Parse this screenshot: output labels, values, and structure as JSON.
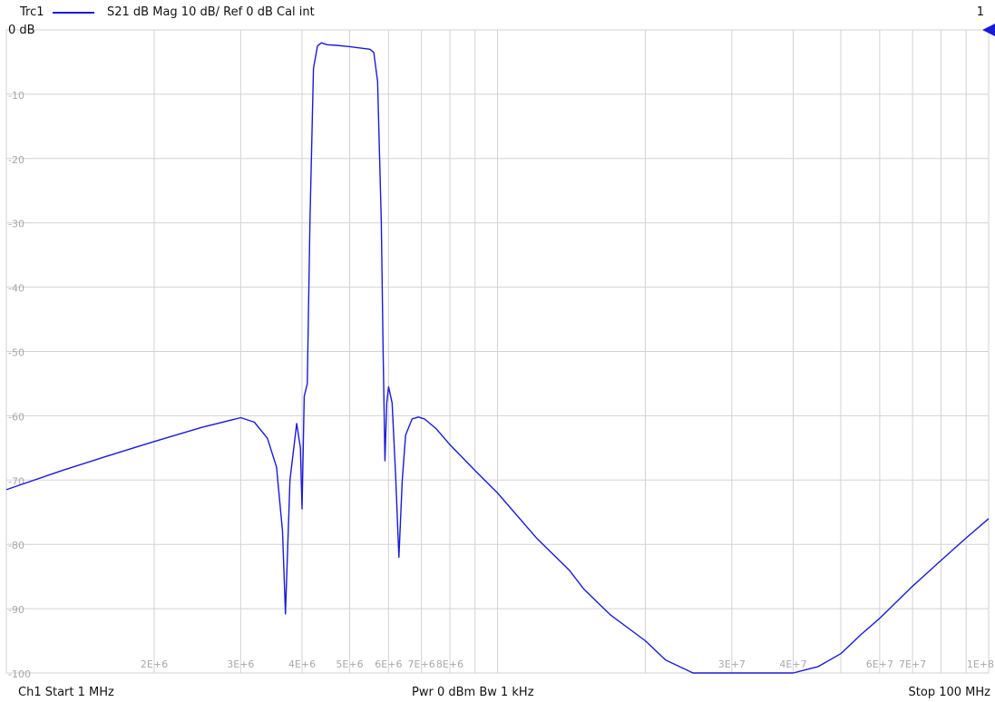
{
  "header": {
    "trace_name": "Trc1",
    "trace_info": "S21  dB Mag  10 dB/ Ref 0 dB  Cal int",
    "channel_number": "1",
    "ref_label": "0 dB"
  },
  "footer": {
    "left": "Ch1  Start  1 MHz",
    "center": "Pwr  0 dBm  Bw  1 kHz",
    "right": "Stop  100 MHz"
  },
  "colors": {
    "trace": "#1a1adb",
    "grid": "#d3d3d3",
    "text": "#111111",
    "tick_text": "#a8a8a8"
  },
  "chart_data": {
    "type": "line",
    "x_scale": "log",
    "x_unit": "Hz",
    "y_unit": "dB",
    "xlim": [
      1000000,
      100000000
    ],
    "ylim": [
      -100,
      0
    ],
    "grid": true,
    "y_tick_labels": [
      "0 dB",
      "-10",
      "-20",
      "-30",
      "-40",
      "-50",
      "-60",
      "-70",
      "-80",
      "-90",
      "-100"
    ],
    "y_tick_values": [
      0,
      -10,
      -20,
      -30,
      -40,
      -50,
      -60,
      -70,
      -80,
      -90,
      -100
    ],
    "x_tick_labels": [
      "2E+6",
      "3E+6",
      "4E+6",
      "5E+6",
      "6E+6",
      "7E+6",
      "8E+6",
      "3E+7",
      "4E+7",
      "6E+7",
      "7E+7",
      "1E+8"
    ],
    "x_tick_values": [
      2000000,
      3000000,
      4000000,
      5000000,
      6000000,
      7000000,
      8000000,
      30000000,
      40000000,
      60000000,
      70000000,
      100000000
    ],
    "series": [
      {
        "x": [
          1000000,
          1300000,
          1600000,
          2000000,
          2500000,
          3000000,
          3200000,
          3400000,
          3550000,
          3650000,
          3700000,
          3780000,
          3900000,
          3970000,
          4000000,
          4040000,
          4100000,
          4150000,
          4220000,
          4300000,
          4380000,
          4500000,
          4700000,
          5000000,
          5500000,
          5600000,
          5700000,
          5800000,
          5850000,
          5900000,
          5950000,
          6000000,
          6100000,
          6200000,
          6300000,
          6400000,
          6500000,
          6700000,
          6900000,
          7100000,
          7500000,
          8000000,
          9000000,
          10000000,
          12000000,
          14000000,
          15000000,
          17000000,
          20000000,
          22000000,
          25000000,
          30000000,
          35000000,
          40000000,
          45000000,
          50000000,
          55000000,
          60000000,
          70000000,
          80000000,
          90000000,
          100000000
        ],
        "y": [
          -71.5,
          -68.5,
          -66.3,
          -64.0,
          -61.8,
          -60.3,
          -61.0,
          -63.5,
          -68.0,
          -78.0,
          -90.8,
          -70.0,
          -61.2,
          -65.0,
          -74.5,
          -57.0,
          -55.0,
          -30.0,
          -6.0,
          -2.5,
          -2.0,
          -2.3,
          -2.4,
          -2.6,
          -3.0,
          -3.5,
          -8.0,
          -30.0,
          -50.0,
          -67.0,
          -58.0,
          -55.5,
          -58.0,
          -69.0,
          -82.0,
          -70.0,
          -63.0,
          -60.5,
          -60.2,
          -60.5,
          -62.0,
          -64.5,
          -68.5,
          -72.0,
          -79.0,
          -84.0,
          -87.0,
          -91.0,
          -95.0,
          -98.0,
          -100.0,
          -100.0,
          -100.0,
          -100.0,
          -99.0,
          -97.0,
          -94.0,
          -91.5,
          -86.5,
          -82.5,
          -79.0,
          -76.0
        ]
      }
    ]
  }
}
